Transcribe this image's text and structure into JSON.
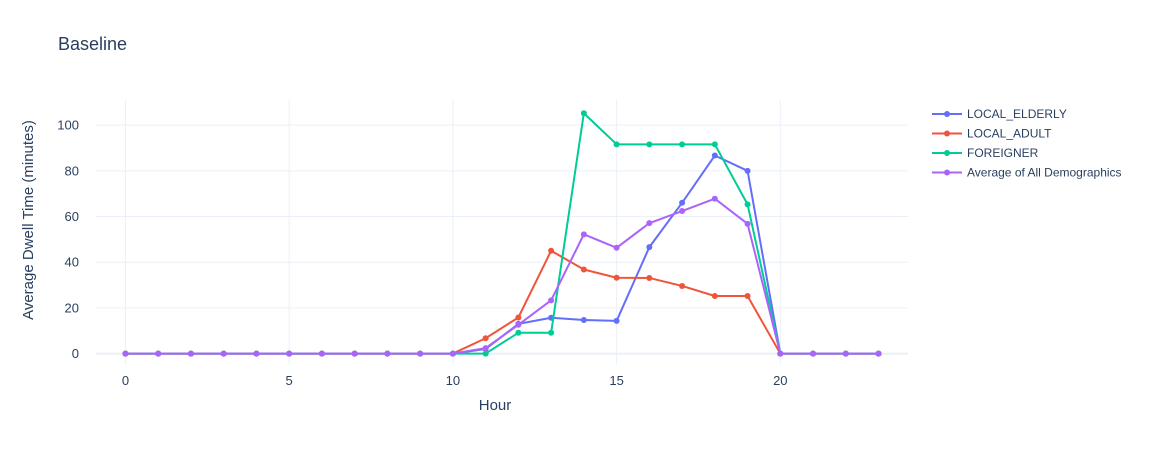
{
  "chart_data": {
    "type": "line",
    "title": "Baseline",
    "xlabel": "Hour",
    "ylabel": "Average Dwell Time (minutes)",
    "xlim": [
      -0.9,
      23.9
    ],
    "ylim": [
      -5,
      111
    ],
    "x_ticks": [
      0,
      5,
      10,
      15,
      20
    ],
    "y_ticks": [
      0,
      20,
      40,
      60,
      80,
      100
    ],
    "grid": true,
    "legend_position": "top-right",
    "x": [
      0,
      1,
      2,
      3,
      4,
      5,
      6,
      7,
      8,
      9,
      10,
      11,
      12,
      13,
      14,
      15,
      16,
      17,
      18,
      19,
      20,
      21,
      22,
      23
    ],
    "series": [
      {
        "name": "LOCAL_ELDERLY",
        "color": "#636efa",
        "values": [
          0,
          0,
          0,
          0,
          0,
          0,
          0,
          0,
          0,
          0,
          0,
          2,
          13,
          15.7,
          14.7,
          14.3,
          46.6,
          66,
          86.7,
          80,
          0,
          0,
          0,
          0
        ]
      },
      {
        "name": "LOCAL_ADULT",
        "color": "#ef553b",
        "values": [
          0,
          0,
          0,
          0,
          0,
          0,
          0,
          0,
          0,
          0,
          0,
          6.7,
          15.8,
          45,
          36.8,
          33.2,
          33.1,
          29.6,
          25.2,
          25.2,
          0,
          0,
          0,
          0
        ]
      },
      {
        "name": "FOREIGNER",
        "color": "#00cc96",
        "values": [
          0,
          0,
          0,
          0,
          0,
          0,
          0,
          0,
          0,
          0,
          0,
          0,
          9.1,
          9.1,
          105.2,
          91.6,
          91.6,
          91.6,
          91.6,
          65.3,
          0,
          0,
          0,
          0
        ]
      },
      {
        "name": "Average of All Demographics",
        "color": "#ab63fa",
        "values": [
          0,
          0,
          0,
          0,
          0,
          0,
          0,
          0,
          0,
          0,
          0,
          2.4,
          12.6,
          23.3,
          52.2,
          46.3,
          57.1,
          62.4,
          67.8,
          56.8,
          0,
          0,
          0,
          0
        ]
      }
    ]
  }
}
